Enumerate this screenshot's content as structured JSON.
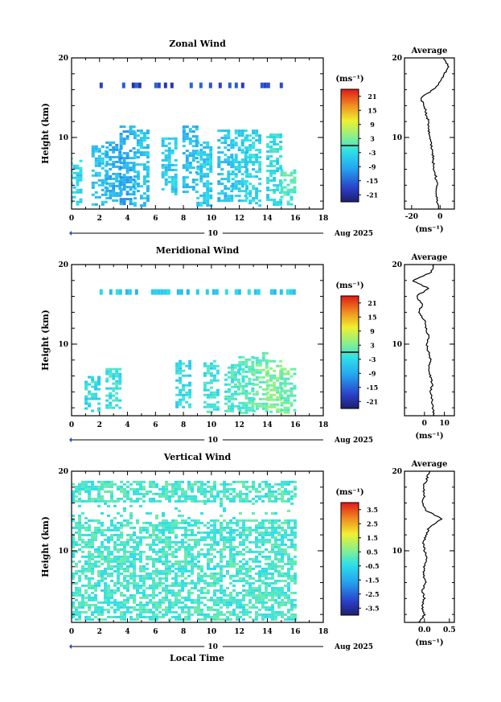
{
  "figure": {
    "x_axis_label": "Local Time",
    "date_label": "Aug 2025",
    "date_marker": "10",
    "height_axis_label": "Height (km)",
    "unit_label": "(ms⁻¹)",
    "average_title": "Average"
  },
  "chart_data": [
    {
      "type": "heatmap",
      "title": "Zonal Wind",
      "xlabel": "",
      "ylabel": "Height (km)",
      "xlim": [
        0,
        18
      ],
      "ylim": [
        1,
        20
      ],
      "x_ticks": [
        0,
        2,
        4,
        6,
        8,
        10,
        12,
        14,
        16,
        18
      ],
      "y_ticks": [
        10,
        20
      ],
      "colorbar": {
        "label": "(ms⁻¹)",
        "ticks": [
          21,
          15,
          9,
          3,
          -3,
          -9,
          -15,
          -21
        ],
        "tick_labels": [
          "21",
          "15",
          "9",
          "3",
          "-3",
          "-9",
          "-15",
          "-21"
        ],
        "range": [
          -24,
          24
        ],
        "marker_value": 0
      },
      "data_columns": [
        {
          "t": 0.2,
          "hmin": 1.5,
          "hmax": 7.5,
          "v": -4
        },
        {
          "t": 2.0,
          "hmin": 1.5,
          "hmax": 9.0,
          "v": -6
        },
        {
          "t": 3.0,
          "hmin": 2.0,
          "hmax": 9.5,
          "v": -8
        },
        {
          "t": 4.0,
          "hmin": 1.5,
          "hmax": 11.5,
          "v": -9
        },
        {
          "t": 5.0,
          "hmin": 1.5,
          "hmax": 11.0,
          "v": -6
        },
        {
          "t": 7.0,
          "hmin": 3.0,
          "hmax": 10.0,
          "v": -5
        },
        {
          "t": 8.5,
          "hmin": 3.0,
          "hmax": 11.5,
          "v": -7
        },
        {
          "t": 9.5,
          "hmin": 1.5,
          "hmax": 9.5,
          "v": -5
        },
        {
          "t": 11.0,
          "hmin": 2.0,
          "hmax": 11.0,
          "v": -6
        },
        {
          "t": 12.0,
          "hmin": 2.0,
          "hmax": 11.0,
          "v": -5
        },
        {
          "t": 13.0,
          "hmin": 1.5,
          "hmax": 11.0,
          "v": -4
        },
        {
          "t": 14.5,
          "hmin": 1.5,
          "hmax": 10.5,
          "v": -3
        },
        {
          "t": 15.5,
          "hmin": 1.5,
          "hmax": 6.0,
          "v": 0
        }
      ],
      "upper_layer": {
        "hmin": 16.2,
        "hmax": 16.9,
        "v": -18
      },
      "average_profile": {
        "title": "Average",
        "xlabel": "(ms⁻¹)",
        "xlim": [
          -25,
          10
        ],
        "x_ticks": [
          -20,
          0
        ],
        "y_ticks": [
          10,
          20
        ],
        "heights": [
          1,
          2,
          3,
          4,
          5,
          6,
          7,
          8,
          9,
          10,
          11,
          12,
          13,
          14,
          15,
          16,
          17,
          18,
          19,
          20
        ],
        "values": [
          -1,
          -2,
          -3,
          -2,
          -3,
          -4,
          -5,
          -5,
          -6,
          -7,
          -8,
          -8,
          -10,
          -11,
          -14,
          -5,
          0,
          3,
          6,
          2
        ]
      }
    },
    {
      "type": "heatmap",
      "title": "Meridional Wind",
      "xlabel": "",
      "ylabel": "Height (km)",
      "xlim": [
        0,
        18
      ],
      "ylim": [
        1,
        20
      ],
      "x_ticks": [
        0,
        2,
        4,
        6,
        8,
        10,
        12,
        14,
        16,
        18
      ],
      "y_ticks": [
        10,
        20
      ],
      "colorbar": {
        "label": "(ms⁻¹)",
        "ticks": [
          21,
          15,
          9,
          3,
          -3,
          -9,
          -15,
          -21
        ],
        "tick_labels": [
          "21",
          "15",
          "9",
          "3",
          "-3",
          "-9",
          "-15",
          "-21"
        ],
        "range": [
          -24,
          24
        ],
        "marker_value": 0
      },
      "data_columns": [
        {
          "t": 1.5,
          "hmin": 1.5,
          "hmax": 6.0,
          "v": -3
        },
        {
          "t": 3.0,
          "hmin": 2.0,
          "hmax": 7.0,
          "v": -2
        },
        {
          "t": 8.0,
          "hmin": 2.0,
          "hmax": 8.0,
          "v": -3
        },
        {
          "t": 10.0,
          "hmin": 1.5,
          "hmax": 8.0,
          "v": -2
        },
        {
          "t": 11.5,
          "hmin": 1.5,
          "hmax": 7.5,
          "v": -1
        },
        {
          "t": 12.5,
          "hmin": 1.5,
          "hmax": 8.5,
          "v": 0
        },
        {
          "t": 13.5,
          "hmin": 1.5,
          "hmax": 9.0,
          "v": 2
        },
        {
          "t": 14.5,
          "hmin": 1.5,
          "hmax": 8.0,
          "v": 3
        },
        {
          "t": 15.5,
          "hmin": 1.5,
          "hmax": 7.0,
          "v": 2
        }
      ],
      "upper_layer": {
        "hmin": 16.2,
        "hmax": 16.9,
        "v": -5
      },
      "average_profile": {
        "title": "Average",
        "xlabel": "(ms⁻¹)",
        "xlim": [
          -10,
          15
        ],
        "x_ticks": [
          0,
          10
        ],
        "y_ticks": [
          10,
          20
        ],
        "heights": [
          1,
          2,
          3,
          4,
          5,
          6,
          7,
          8,
          9,
          10,
          11,
          12,
          13,
          14,
          15,
          16,
          17,
          18,
          19,
          20
        ],
        "values": [
          5,
          4,
          4,
          3,
          4,
          3,
          2,
          3,
          2,
          1,
          2,
          1,
          0,
          -3,
          -1,
          -4,
          2,
          -6,
          3,
          5
        ]
      }
    },
    {
      "type": "heatmap",
      "title": "Vertical Wind",
      "xlabel": "Local Time",
      "ylabel": "Height (km)",
      "xlim": [
        0,
        18
      ],
      "ylim": [
        1,
        20
      ],
      "x_ticks": [
        0,
        2,
        4,
        6,
        8,
        10,
        12,
        14,
        16,
        18
      ],
      "y_ticks": [
        10,
        20
      ],
      "colorbar": {
        "label": "(ms⁻¹)",
        "ticks": [
          3.5,
          2.5,
          1.5,
          0.5,
          -0.5,
          -1.5,
          -2.5,
          -3.5
        ],
        "tick_labels": [
          "3.5",
          "2.5",
          "1.5",
          "0.5",
          "-0.5",
          "-1.5",
          "-2.5",
          "-3.5"
        ],
        "range": [
          -4,
          4
        ],
        "marker_value": null
      },
      "coverage": {
        "t_min": 0,
        "t_max": 16,
        "h_min": 1.5,
        "h_max": 18.8,
        "gap": [
          14.0,
          16.3
        ],
        "v_range": [
          -0.6,
          0.4
        ]
      },
      "average_profile": {
        "title": "Average",
        "xlabel": "(ms⁻¹)",
        "xlim": [
          -0.4,
          0.6
        ],
        "x_ticks": [
          0.0,
          0.5
        ],
        "x_tick_labels": [
          "0.0",
          "0.5"
        ],
        "y_ticks": [
          10,
          20
        ],
        "heights": [
          1,
          2,
          3,
          4,
          5,
          6,
          7,
          8,
          9,
          10,
          11,
          12,
          13,
          14,
          15,
          16,
          17,
          18,
          19,
          20
        ],
        "values": [
          -0.1,
          0.0,
          -0.05,
          0.0,
          -0.05,
          0.02,
          -0.02,
          0.0,
          0.05,
          0.0,
          -0.02,
          0.03,
          0.1,
          0.35,
          0.05,
          -0.05,
          0.0,
          -0.02,
          0.05,
          0.1
        ]
      }
    }
  ]
}
